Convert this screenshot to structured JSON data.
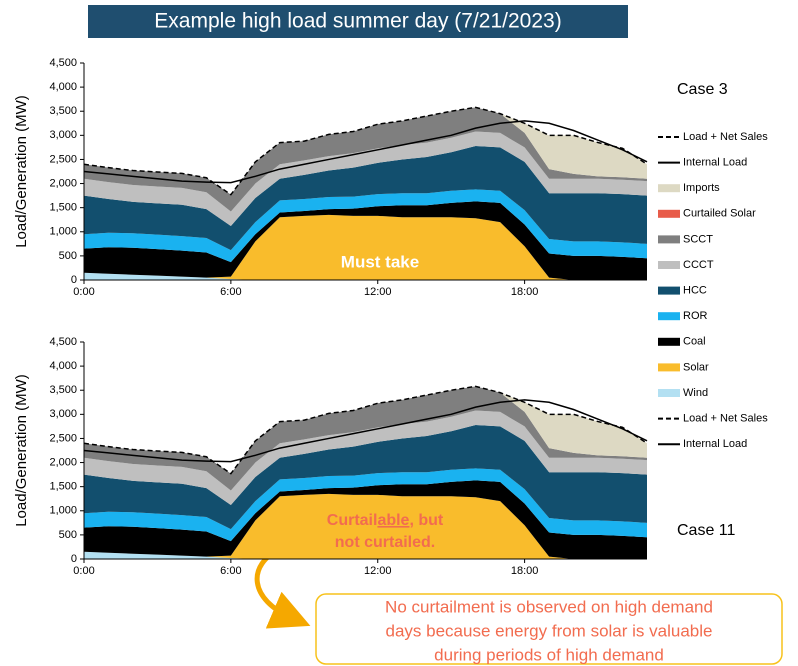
{
  "title": "Example high load summer day (7/21/2023)",
  "chart_data": [
    {
      "type": "stacked-area",
      "case_label": "Case 3",
      "y_label": "Load/Generation (MW)",
      "annotation": "Must take",
      "x": [
        0,
        1,
        2,
        3,
        4,
        5,
        6,
        7,
        8,
        9,
        10,
        11,
        12,
        13,
        14,
        15,
        16,
        17,
        18,
        19,
        20,
        21,
        22,
        23
      ],
      "xlim": [
        0,
        23
      ],
      "xticks": [
        {
          "value": 0,
          "label": "0:00"
        },
        {
          "value": 6,
          "label": "6:00"
        },
        {
          "value": 12,
          "label": "12:00"
        },
        {
          "value": 18,
          "label": "18:00"
        }
      ],
      "ylim": [
        0,
        4500
      ],
      "yticks": [
        0,
        500,
        {
          "value": 1000,
          "label": "1,000"
        },
        {
          "value": 1500,
          "label": "1,500"
        },
        {
          "value": 2000,
          "label": "2,000"
        },
        {
          "value": 2500,
          "label": "2,500"
        },
        {
          "value": 3000,
          "label": "3,000"
        },
        {
          "value": 3500,
          "label": "3,500"
        },
        {
          "value": 4000,
          "label": "4,000"
        },
        {
          "value": 4500,
          "label": "4,500"
        }
      ],
      "series": [
        {
          "name": "Wind",
          "color": "#b3e0f2",
          "values": [
            150,
            130,
            110,
            90,
            70,
            50,
            20,
            0,
            0,
            0,
            0,
            0,
            0,
            0,
            0,
            0,
            0,
            0,
            0,
            0,
            0,
            0,
            0,
            0
          ]
        },
        {
          "name": "Solar",
          "color": "#f9bc2c",
          "values": [
            0,
            0,
            0,
            0,
            0,
            0,
            50,
            800,
            1300,
            1330,
            1350,
            1330,
            1330,
            1300,
            1300,
            1300,
            1280,
            1200,
            700,
            50,
            0,
            0,
            0,
            0
          ]
        },
        {
          "name": "Coal",
          "color": "#000000",
          "values": [
            500,
            550,
            560,
            550,
            540,
            520,
            300,
            150,
            100,
            100,
            120,
            150,
            200,
            250,
            250,
            300,
            350,
            400,
            450,
            500,
            500,
            500,
            480,
            450
          ]
        },
        {
          "name": "ROR",
          "color": "#1ab2f0",
          "values": [
            300,
            300,
            300,
            300,
            300,
            300,
            250,
            250,
            250,
            250,
            250,
            250,
            250,
            250,
            250,
            250,
            250,
            250,
            300,
            300,
            300,
            300,
            300,
            300
          ]
        },
        {
          "name": "HCC",
          "color": "#124f6e",
          "values": [
            800,
            700,
            650,
            650,
            650,
            600,
            500,
            500,
            450,
            500,
            550,
            600,
            650,
            700,
            750,
            800,
            900,
            900,
            1000,
            950,
            1000,
            1000,
            1000,
            1000
          ]
        },
        {
          "name": "CCCT",
          "color": "#bfbfbf",
          "values": [
            350,
            350,
            350,
            350,
            350,
            350,
            300,
            300,
            300,
            300,
            300,
            300,
            300,
            300,
            300,
            300,
            300,
            300,
            300,
            300,
            300,
            300,
            300,
            300
          ]
        },
        {
          "name": "SCCT",
          "color": "#7f7f7f",
          "values": [
            300,
            300,
            300,
            300,
            300,
            300,
            350,
            450,
            450,
            400,
            450,
            450,
            500,
            500,
            550,
            550,
            500,
            400,
            300,
            200,
            100,
            50,
            50,
            50
          ]
        },
        {
          "name": "Curtailed Solar",
          "color": "#e85c4a",
          "values": [
            0,
            0,
            0,
            0,
            0,
            0,
            0,
            0,
            0,
            0,
            0,
            0,
            0,
            0,
            0,
            0,
            0,
            0,
            0,
            0,
            0,
            0,
            0,
            0
          ]
        },
        {
          "name": "Imports",
          "color": "#ddd9c3",
          "values": [
            0,
            0,
            0,
            0,
            0,
            0,
            0,
            0,
            0,
            0,
            0,
            0,
            0,
            0,
            0,
            0,
            0,
            0,
            200,
            700,
            800,
            700,
            600,
            300
          ]
        }
      ],
      "lines": [
        {
          "name": "Load + Net Sales",
          "color": "#000000",
          "dashed": true,
          "values": [
            2400,
            2330,
            2270,
            2240,
            2210,
            2120,
            1770,
            2450,
            2850,
            2880,
            3020,
            3080,
            3230,
            3300,
            3400,
            3500,
            3580,
            3450,
            3250,
            3000,
            3000,
            2850,
            2730,
            2400
          ]
        },
        {
          "name": "Internal Load",
          "color": "#000000",
          "dashed": false,
          "values": [
            2250,
            2200,
            2150,
            2100,
            2050,
            2030,
            2020,
            2150,
            2300,
            2400,
            2500,
            2600,
            2700,
            2800,
            2900,
            3000,
            3150,
            3250,
            3300,
            3250,
            3100,
            2900,
            2700,
            2450
          ]
        }
      ]
    },
    {
      "type": "stacked-area",
      "case_label": "Case 11",
      "y_label": "Load/Generation (MW)",
      "annotation_parts": [
        "Curtail",
        "able",
        ", but",
        "not curtailed."
      ],
      "x": [
        0,
        1,
        2,
        3,
        4,
        5,
        6,
        7,
        8,
        9,
        10,
        11,
        12,
        13,
        14,
        15,
        16,
        17,
        18,
        19,
        20,
        21,
        22,
        23
      ],
      "xlim": [
        0,
        23
      ],
      "xticks": [
        {
          "value": 0,
          "label": "0:00"
        },
        {
          "value": 6,
          "label": "6:00"
        },
        {
          "value": 12,
          "label": "12:00"
        },
        {
          "value": 18,
          "label": "18:00"
        }
      ],
      "ylim": [
        0,
        4500
      ],
      "yticks": [
        0,
        500,
        {
          "value": 1000,
          "label": "1,000"
        },
        {
          "value": 1500,
          "label": "1,500"
        },
        {
          "value": 2000,
          "label": "2,000"
        },
        {
          "value": 2500,
          "label": "2,500"
        },
        {
          "value": 3000,
          "label": "3,000"
        },
        {
          "value": 3500,
          "label": "3,500"
        },
        {
          "value": 4000,
          "label": "4,000"
        },
        {
          "value": 4500,
          "label": "4,500"
        }
      ],
      "series": [
        {
          "name": "Wind",
          "color": "#b3e0f2",
          "values": [
            150,
            130,
            110,
            90,
            70,
            50,
            20,
            0,
            0,
            0,
            0,
            0,
            0,
            0,
            0,
            0,
            0,
            0,
            0,
            0,
            0,
            0,
            0,
            0
          ]
        },
        {
          "name": "Solar",
          "color": "#f9bc2c",
          "values": [
            0,
            0,
            0,
            0,
            0,
            0,
            50,
            800,
            1300,
            1330,
            1350,
            1330,
            1330,
            1300,
            1300,
            1300,
            1280,
            1200,
            700,
            50,
            0,
            0,
            0,
            0
          ]
        },
        {
          "name": "Coal",
          "color": "#000000",
          "values": [
            500,
            550,
            560,
            550,
            540,
            520,
            300,
            150,
            100,
            100,
            120,
            150,
            200,
            250,
            250,
            300,
            350,
            400,
            450,
            500,
            500,
            500,
            480,
            450
          ]
        },
        {
          "name": "ROR",
          "color": "#1ab2f0",
          "values": [
            300,
            300,
            300,
            300,
            300,
            300,
            250,
            250,
            250,
            250,
            250,
            250,
            250,
            250,
            250,
            250,
            250,
            250,
            300,
            300,
            300,
            300,
            300,
            300
          ]
        },
        {
          "name": "HCC",
          "color": "#124f6e",
          "values": [
            800,
            700,
            650,
            650,
            650,
            600,
            500,
            500,
            450,
            500,
            550,
            600,
            650,
            700,
            750,
            800,
            900,
            900,
            1000,
            950,
            1000,
            1000,
            1000,
            1000
          ]
        },
        {
          "name": "CCCT",
          "color": "#bfbfbf",
          "values": [
            350,
            350,
            350,
            350,
            350,
            350,
            300,
            300,
            300,
            300,
            300,
            300,
            300,
            300,
            300,
            300,
            300,
            300,
            300,
            300,
            300,
            300,
            300,
            300
          ]
        },
        {
          "name": "SCCT",
          "color": "#7f7f7f",
          "values": [
            300,
            300,
            300,
            300,
            300,
            300,
            350,
            450,
            450,
            400,
            450,
            450,
            500,
            500,
            550,
            550,
            500,
            400,
            300,
            200,
            100,
            50,
            50,
            50
          ]
        },
        {
          "name": "Curtailed Solar",
          "color": "#e85c4a",
          "values": [
            0,
            0,
            0,
            0,
            0,
            0,
            0,
            0,
            0,
            0,
            0,
            0,
            0,
            0,
            0,
            0,
            0,
            0,
            0,
            0,
            0,
            0,
            0,
            0
          ]
        },
        {
          "name": "Imports",
          "color": "#ddd9c3",
          "values": [
            0,
            0,
            0,
            0,
            0,
            0,
            0,
            0,
            0,
            0,
            0,
            0,
            0,
            0,
            0,
            0,
            0,
            0,
            200,
            700,
            800,
            700,
            600,
            300
          ]
        }
      ],
      "lines": [
        {
          "name": "Load + Net Sales",
          "color": "#000000",
          "dashed": true,
          "values": [
            2400,
            2330,
            2270,
            2240,
            2210,
            2120,
            1770,
            2450,
            2850,
            2880,
            3020,
            3080,
            3230,
            3300,
            3400,
            3500,
            3580,
            3450,
            3250,
            3000,
            3000,
            2850,
            2730,
            2400
          ]
        },
        {
          "name": "Internal Load",
          "color": "#000000",
          "dashed": false,
          "values": [
            2250,
            2200,
            2150,
            2100,
            2050,
            2030,
            2020,
            2150,
            2300,
            2400,
            2500,
            2600,
            2700,
            2800,
            2900,
            3000,
            3150,
            3250,
            3300,
            3250,
            3100,
            2900,
            2700,
            2450
          ]
        }
      ]
    }
  ],
  "callout": [
    "No curtailment is observed on high demand",
    "days because energy from solar is valuable",
    "during periods of high demand"
  ]
}
